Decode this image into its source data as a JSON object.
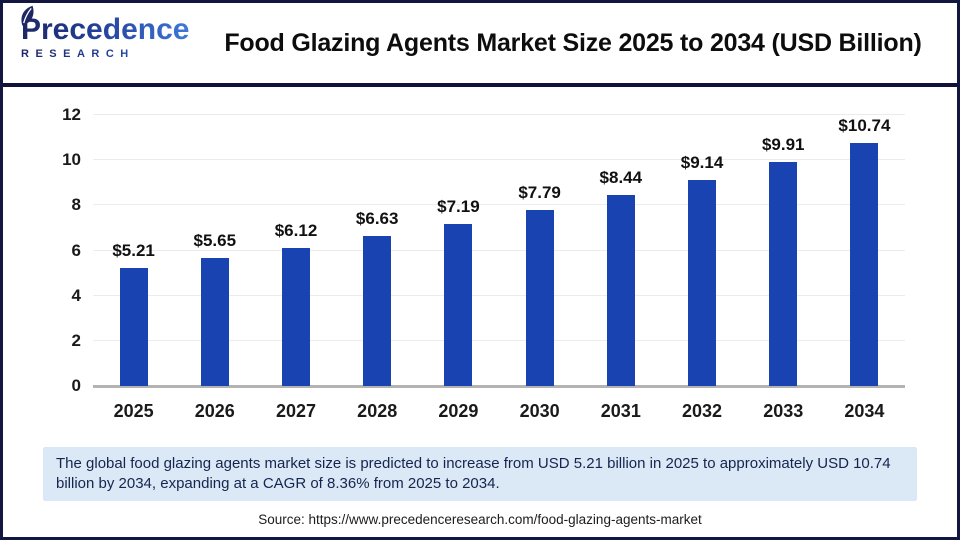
{
  "logo": {
    "name": "Precedence",
    "subname": "RESEARCH"
  },
  "header": {
    "title": "Food Glazing Agents Market Size 2025 to 2034 (USD Billion)"
  },
  "chart_data": {
    "type": "bar",
    "title": "Food Glazing Agents Market Size 2025 to 2034 (USD Billion)",
    "categories": [
      "2025",
      "2026",
      "2027",
      "2028",
      "2029",
      "2030",
      "2031",
      "2032",
      "2033",
      "2034"
    ],
    "values": [
      5.21,
      5.65,
      6.12,
      6.63,
      7.19,
      7.79,
      8.44,
      9.14,
      9.91,
      10.74
    ],
    "value_labels": [
      "$5.21",
      "$5.65",
      "$6.12",
      "$6.63",
      "$7.19",
      "$7.79",
      "$8.44",
      "$9.14",
      "$9.91",
      "$10.74"
    ],
    "xlabel": "",
    "ylabel": "",
    "ylim": [
      0,
      12
    ],
    "yticks": [
      0,
      2,
      4,
      6,
      8,
      10,
      12
    ],
    "grid": true,
    "legend": false,
    "bar_color": "#1843b0"
  },
  "note": {
    "text": "The global food glazing agents market size is predicted to increase from USD 5.21 billion in 2025 to approximately USD 10.74 billion by 2034, expanding at a CAGR of 8.36% from 2025 to 2034."
  },
  "source": {
    "text": "Source: https://www.precedenceresearch.com/food-glazing-agents-market"
  },
  "colors": {
    "bar": "#1843b0",
    "separator": "#101238",
    "note_background": "#dbe8f6",
    "note_text": "#16254e",
    "logo_dark": "#1c2764",
    "logo_light": "#3e7ada",
    "gridline": "#ececec",
    "axis_line": "#b3b3b3"
  }
}
